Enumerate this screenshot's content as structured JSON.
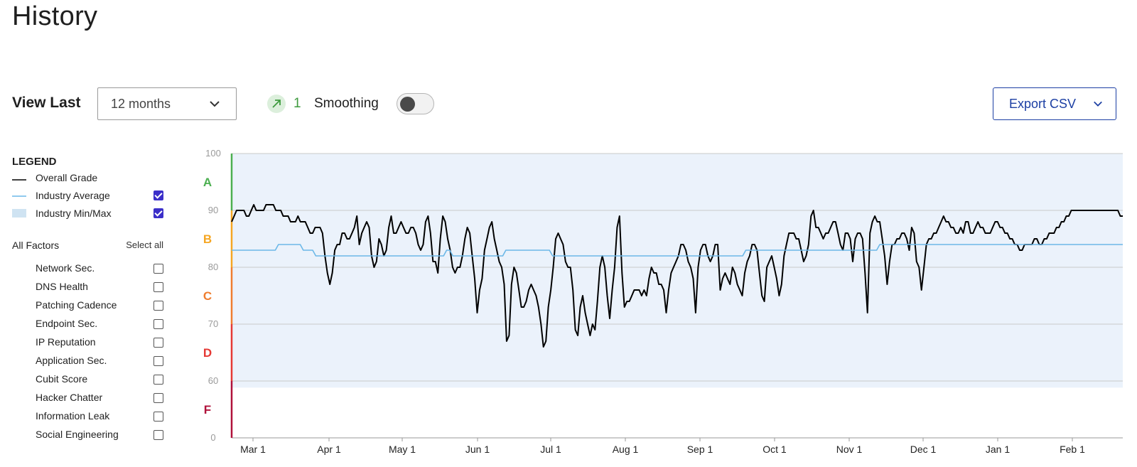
{
  "page": {
    "title": "History"
  },
  "toolbar": {
    "view_last_label": "View Last",
    "range_value": "12 months",
    "trend_value": "1",
    "smoothing_label": "Smoothing",
    "smoothing_on": false,
    "export_label": "Export CSV"
  },
  "legend": {
    "title": "LEGEND",
    "items": [
      {
        "label": "Overall Grade",
        "color": "#000000",
        "checkbox": false
      },
      {
        "label": "Industry Average",
        "color": "#6cb8e8",
        "checkbox": true,
        "checked": true
      },
      {
        "label": "Industry Min/Max",
        "color": "#cfe3f2",
        "checkbox": true,
        "checked": true
      }
    ]
  },
  "factors": {
    "header": "All Factors",
    "select_all": "Select all",
    "items": [
      "Network Sec.",
      "DNS Health",
      "Patching Cadence",
      "Endpoint Sec.",
      "IP Reputation",
      "Application Sec.",
      "Cubit Score",
      "Hacker Chatter",
      "Information Leak",
      "Social Engineering"
    ]
  },
  "chart_data": {
    "type": "line",
    "y_ticks": [
      "100",
      "90",
      "80",
      "70",
      "60",
      "0"
    ],
    "x_ticks": [
      "Mar 1",
      "Apr 1",
      "May 1",
      "Jun 1",
      "Jul 1",
      "Aug 1",
      "Sep 1",
      "Oct 1",
      "Nov 1",
      "Dec 1",
      "Jan 1",
      "Feb 1"
    ],
    "grades": [
      {
        "label": "A",
        "color": "#4caf50",
        "from": 90,
        "to": 100
      },
      {
        "label": "B",
        "color": "#f5a623",
        "from": 80,
        "to": 90
      },
      {
        "label": "C",
        "color": "#ef7d2f",
        "from": 70,
        "to": 80
      },
      {
        "label": "D",
        "color": "#e53935",
        "from": 60,
        "to": 70
      },
      {
        "label": "F",
        "color": "#b0123b",
        "from": 0,
        "to": 60
      }
    ],
    "industry_min": 53,
    "industry_max": 100,
    "series": [
      {
        "name": "Overall Grade",
        "color": "#000000",
        "x_start": "Feb 21",
        "x_end": "Feb 28",
        "values": [
          88,
          89,
          90,
          90,
          90,
          90,
          89,
          89,
          90,
          91,
          90,
          90,
          90,
          90,
          91,
          91,
          91,
          91,
          90,
          90,
          90,
          89,
          89,
          89,
          88,
          88,
          88,
          89,
          88,
          88,
          88,
          87,
          86,
          86,
          87,
          87,
          87,
          86,
          82,
          79,
          77,
          79,
          83,
          84,
          84,
          86,
          86,
          85,
          85,
          86,
          87,
          89,
          84,
          86,
          87,
          88,
          87,
          82,
          80,
          81,
          85,
          84,
          82,
          83,
          87,
          89,
          86,
          86,
          87,
          88,
          87,
          86,
          86,
          87,
          87,
          86,
          84,
          83,
          84,
          88,
          89,
          86,
          81,
          81,
          79,
          85,
          89,
          88,
          85,
          83,
          80,
          79,
          80,
          80,
          82,
          85,
          87,
          86,
          82,
          78,
          72,
          76,
          78,
          83,
          85,
          87,
          88,
          85,
          83,
          81,
          80,
          77,
          67,
          68,
          77,
          80,
          79,
          76,
          73,
          73,
          74,
          76,
          77,
          76,
          75,
          73,
          70,
          66,
          67,
          73,
          76,
          80,
          85,
          86,
          85,
          84,
          81,
          80,
          80,
          76,
          69,
          68,
          73,
          75,
          72,
          70,
          68,
          70,
          69,
          74,
          80,
          82,
          80,
          75,
          71,
          76,
          80,
          87,
          89,
          79,
          73,
          74,
          74,
          75,
          76,
          76,
          76,
          75,
          76,
          75,
          78,
          80,
          79,
          79,
          77,
          77,
          76,
          72,
          76,
          79,
          80,
          81,
          82,
          84,
          84,
          83,
          81,
          80,
          78,
          72,
          80,
          83,
          84,
          84,
          82,
          81,
          82,
          84,
          84,
          76,
          78,
          79,
          78,
          77,
          80,
          79,
          77,
          76,
          75,
          79,
          81,
          82,
          84,
          84,
          83,
          79,
          75,
          74,
          80,
          81,
          82,
          80,
          78,
          75,
          77,
          82,
          84,
          86,
          86,
          86,
          85,
          85,
          83,
          81,
          82,
          84,
          89,
          90,
          87,
          87,
          86,
          85,
          86,
          86,
          87,
          88,
          88,
          86,
          84,
          83,
          86,
          86,
          85,
          81,
          85,
          86,
          86,
          85,
          79,
          72,
          86,
          88,
          89,
          88,
          88,
          85,
          82,
          77,
          81,
          84,
          84,
          85,
          85,
          86,
          86,
          85,
          83,
          87,
          86,
          81,
          80,
          76,
          80,
          84,
          85,
          85,
          86,
          86,
          87,
          88,
          89,
          88,
          88,
          87,
          87,
          86,
          86,
          87,
          86,
          88,
          88,
          86,
          86,
          87,
          88,
          87,
          87,
          86,
          86,
          86,
          87,
          88,
          88,
          87,
          87,
          86,
          86,
          85,
          85,
          84,
          84,
          83,
          83,
          84,
          84,
          84,
          84,
          85,
          85,
          84,
          84,
          85,
          85,
          86,
          86,
          86,
          87,
          87,
          88,
          88,
          89,
          89,
          90,
          90,
          90,
          90,
          90,
          90,
          90,
          90,
          90,
          90,
          90,
          90,
          90,
          90,
          90,
          90,
          90,
          90,
          90,
          90,
          89,
          89
        ]
      },
      {
        "name": "Industry Average",
        "color": "#6cb8e8",
        "x_start": "Feb 21",
        "x_end": "Feb 28",
        "values": [
          83,
          83,
          83,
          83,
          83,
          83,
          83,
          83,
          83,
          83,
          83,
          83,
          83,
          83,
          83,
          84,
          84,
          84,
          84,
          84,
          84,
          84,
          84,
          83,
          83,
          83,
          83,
          82,
          82,
          82,
          82,
          82,
          82,
          82,
          82,
          82,
          82,
          82,
          82,
          82,
          82,
          82,
          82,
          82,
          82,
          82,
          82,
          82,
          82,
          82,
          82,
          82,
          82,
          82,
          82,
          82,
          82,
          82,
          82,
          82,
          82,
          82,
          82,
          82,
          82,
          82,
          82,
          82,
          82,
          83,
          83,
          82,
          82,
          82,
          82,
          82,
          82,
          82,
          82,
          82,
          82,
          82,
          82,
          82,
          82,
          82,
          82,
          82,
          83,
          83,
          83,
          83,
          83,
          83,
          83,
          83,
          83,
          83,
          83,
          83,
          83,
          83,
          83,
          82,
          82,
          82,
          82,
          82,
          82,
          82,
          82,
          82,
          82,
          82,
          82,
          82,
          82,
          82,
          82,
          82,
          82,
          82,
          82,
          82,
          82,
          82,
          82,
          82,
          82,
          82,
          82,
          82,
          82,
          82,
          82,
          82,
          82,
          82,
          82,
          82,
          82,
          82,
          82,
          82,
          82,
          82,
          82,
          82,
          82,
          82,
          82,
          82,
          82,
          82,
          82,
          82,
          82,
          82,
          82,
          82,
          82,
          82,
          82,
          82,
          82,
          83,
          83,
          83,
          83,
          83,
          83,
          83,
          83,
          83,
          83,
          83,
          83,
          83,
          83,
          83,
          83,
          83,
          83,
          83,
          83,
          83,
          83,
          83,
          83,
          83,
          83,
          83,
          83,
          83,
          83,
          83,
          83,
          83,
          83,
          83,
          83,
          83,
          83,
          83,
          83,
          83,
          83,
          83,
          84,
          84,
          84,
          84,
          84,
          84,
          84,
          84,
          84,
          84,
          84,
          84,
          84,
          84,
          84,
          84,
          84,
          84,
          84,
          84,
          84,
          84,
          84,
          84,
          84,
          84,
          84,
          84,
          84,
          84,
          84,
          84,
          84,
          84,
          84,
          84,
          84,
          84,
          84,
          84,
          84,
          84,
          84,
          84,
          84,
          84,
          84,
          84,
          84,
          84,
          84,
          84,
          84,
          84,
          84,
          84,
          84,
          84,
          84,
          84,
          84,
          84,
          84,
          84,
          84,
          84,
          84,
          84,
          84,
          84,
          84,
          84,
          84,
          84,
          84,
          84,
          84,
          84,
          84
        ]
      }
    ]
  }
}
